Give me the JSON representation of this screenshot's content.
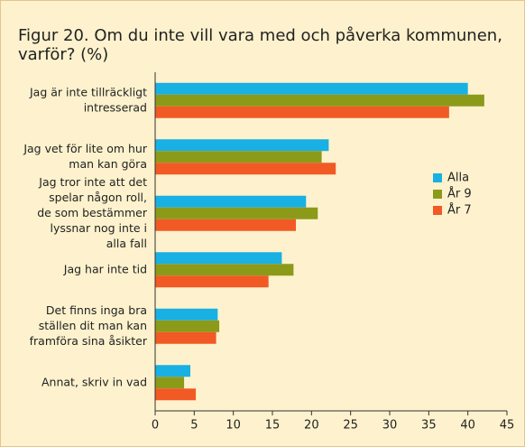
{
  "chart_data": {
    "type": "hbar",
    "title": [
      "Figur 20. Om du inte vill vara med och påverka kommunen,",
      "varför? (%)"
    ],
    "categories": [
      [
        "Jag är inte tillräckligt",
        "intresserad"
      ],
      [
        "Jag vet för lite om hur",
        "man kan göra"
      ],
      [
        "Jag tror inte att det",
        "spelar någon roll,",
        "de som bestämmer",
        "lyssnar nog inte i",
        "alla fall"
      ],
      [
        "Jag har inte tid"
      ],
      [
        "Det finns inga bra",
        "ställen dit man kan",
        "framföra sina åsikter"
      ],
      [
        "Annat, skriv in vad"
      ]
    ],
    "series": [
      {
        "name": "Alla",
        "color": "#19b0e3",
        "values": [
          40,
          22.2,
          19.3,
          16.2,
          8,
          4.5
        ]
      },
      {
        "name": "År 9",
        "color": "#8c9a1a",
        "values": [
          42.1,
          21.3,
          20.8,
          17.7,
          8.2,
          3.7
        ]
      },
      {
        "name": "År 7",
        "color": "#f15a24",
        "values": [
          37.6,
          23.1,
          18,
          14.5,
          7.8,
          5.2
        ]
      }
    ],
    "xlim": [
      0,
      45
    ],
    "xticks": [
      0,
      5,
      10,
      15,
      20,
      25,
      30,
      35,
      40,
      45
    ],
    "legend": "right"
  }
}
